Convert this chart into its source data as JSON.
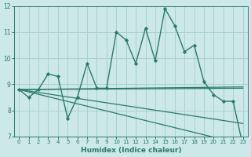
{
  "xlabel": "Humidex (Indice chaleur)",
  "bg_color": "#cce8e8",
  "line_color": "#2a7a6a",
  "grid_color": "#aad0d0",
  "xlim": [
    -0.5,
    23.5
  ],
  "ylim": [
    7,
    12
  ],
  "xticks": [
    0,
    1,
    2,
    3,
    4,
    5,
    6,
    7,
    8,
    9,
    10,
    11,
    12,
    13,
    14,
    15,
    16,
    17,
    18,
    19,
    20,
    21,
    22,
    23
  ],
  "yticks": [
    7,
    8,
    9,
    10,
    11,
    12
  ],
  "main_series": {
    "x": [
      0,
      1,
      2,
      3,
      4,
      5,
      6,
      7,
      8,
      9,
      10,
      11,
      12,
      13,
      14,
      15,
      16,
      17,
      18,
      19,
      20,
      21,
      22,
      23
    ],
    "y": [
      8.8,
      8.5,
      8.8,
      9.4,
      9.3,
      7.7,
      8.5,
      9.8,
      8.85,
      8.85,
      11.0,
      10.7,
      9.8,
      11.15,
      9.9,
      11.9,
      11.25,
      10.25,
      10.5,
      9.1,
      8.6,
      8.35,
      8.35,
      6.65
    ]
  },
  "extra_lines": [
    {
      "x": [
        0,
        23
      ],
      "y": [
        8.8,
        8.9
      ]
    },
    {
      "x": [
        0,
        23
      ],
      "y": [
        8.8,
        8.85
      ]
    },
    {
      "x": [
        0,
        23
      ],
      "y": [
        8.8,
        7.5
      ]
    },
    {
      "x": [
        0,
        23
      ],
      "y": [
        8.8,
        6.7
      ]
    }
  ]
}
